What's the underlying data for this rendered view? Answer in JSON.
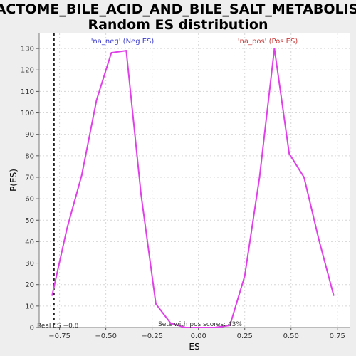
{
  "chart_data": {
    "type": "line",
    "title_line1": "REACTOME_BILE_ACID_AND_BILE_SALT_METABOLISM:",
    "title_line2": "Random ES distribution",
    "xlabel": "ES",
    "ylabel": "P(ES)",
    "xlim": [
      -0.86,
      0.82
    ],
    "ylim": [
      0,
      137
    ],
    "x_ticks": [
      -0.75,
      -0.5,
      -0.25,
      0.0,
      0.25,
      0.5,
      0.75
    ],
    "x_tick_labels": [
      "−0.75",
      "−0.50",
      "−0.25",
      "0.00",
      "0.25",
      "0.50",
      "0.75"
    ],
    "y_ticks": [
      0,
      10,
      20,
      30,
      40,
      50,
      60,
      70,
      80,
      90,
      100,
      110,
      120,
      130
    ],
    "grid": true,
    "line_color": "#e040e8",
    "series": [
      {
        "x": [
          -0.79,
          -0.71,
          -0.63,
          -0.55,
          -0.47,
          -0.39,
          -0.31,
          -0.23,
          -0.15,
          -0.07,
          0.01,
          0.09,
          0.17,
          0.25,
          0.33,
          0.41,
          0.49,
          0.57,
          0.65,
          0.73
        ],
        "y": [
          15,
          46,
          71,
          106,
          128,
          129,
          62,
          11,
          2,
          0,
          0,
          0,
          1,
          24,
          70,
          130,
          81,
          70,
          41,
          15
        ]
      }
    ],
    "real_es": -0.78,
    "real_es_label": "Real ES −0.8",
    "annotations": {
      "neg": {
        "text": "'na_neg' (Neg ES)",
        "color": "#3a3acc"
      },
      "pos": {
        "text": "'na_pos' (Pos ES)",
        "color": "#cc3a3a"
      },
      "pos_scores": "Sets with pos scores: 43%"
    }
  }
}
